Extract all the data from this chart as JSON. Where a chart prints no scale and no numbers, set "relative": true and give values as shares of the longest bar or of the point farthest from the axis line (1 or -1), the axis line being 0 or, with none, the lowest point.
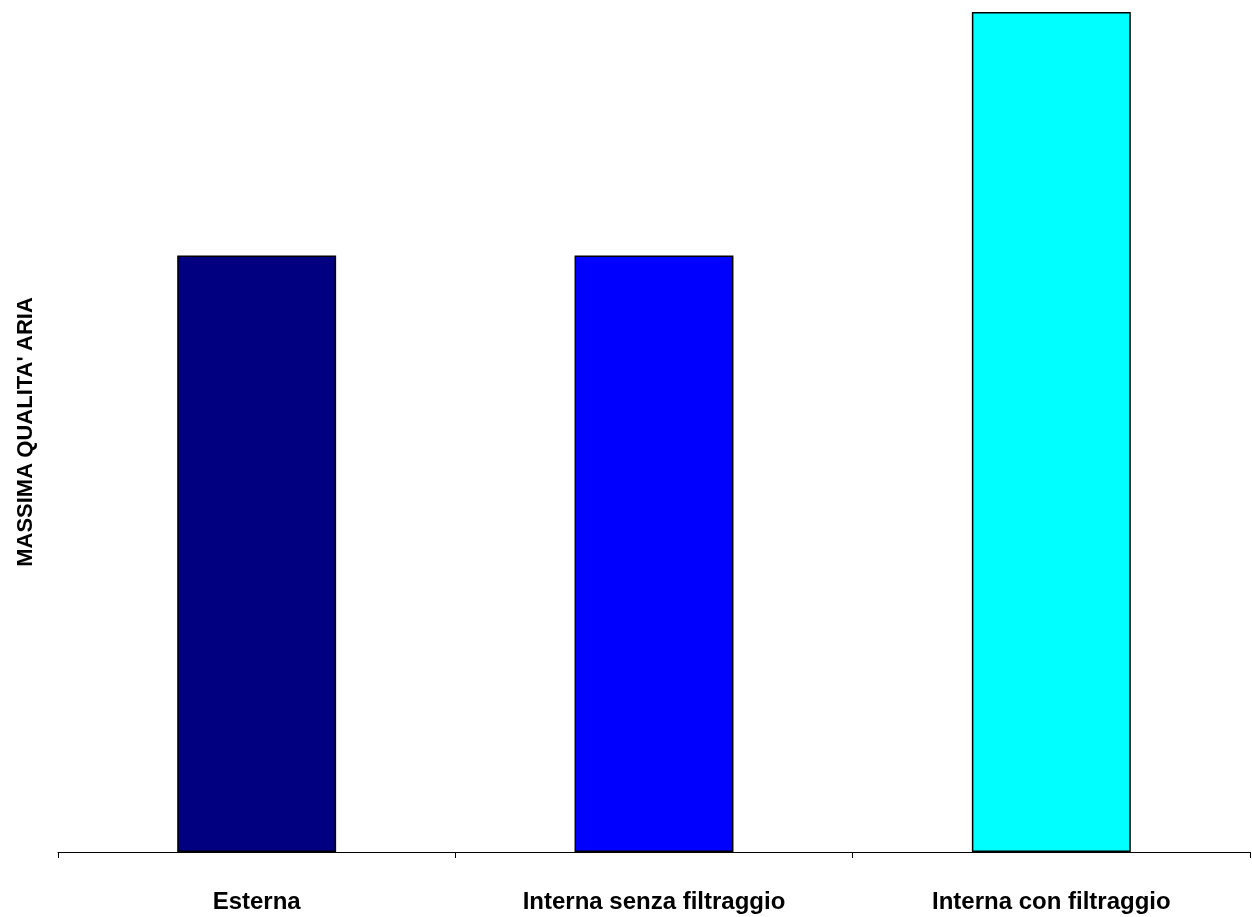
{
  "chart_data": {
    "type": "bar",
    "ylabel": "MASSIMA QUALITA' ARIA",
    "categories": [
      "Esterna",
      "Interna senza filtraggio",
      "Interna con filtraggio"
    ],
    "values": [
      0.71,
      0.71,
      1
    ],
    "colors": [
      "#000080",
      "#0000ff",
      "#00ffff"
    ],
    "relative": true,
    "grid": false
  }
}
